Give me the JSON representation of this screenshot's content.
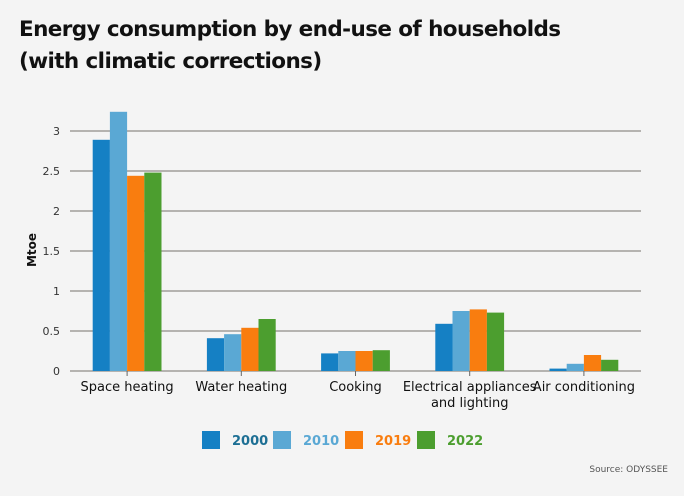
{
  "chart_data": {
    "type": "bar",
    "title": "Energy consumption by end-use of households",
    "subtitle": "(with climatic corrections)",
    "xlabel": "",
    "ylabel": "Mtoe",
    "ylim": [
      0,
      3.25
    ],
    "yticks": [
      0,
      0.5,
      1,
      1.5,
      2,
      2.5,
      3
    ],
    "ytick_labels": [
      "0",
      "0.5",
      "1",
      "1.5",
      "2",
      "2.5",
      "3"
    ],
    "grid": true,
    "legend_position": "bottom",
    "categories": [
      "Space heating",
      "Water heating",
      "Cooking",
      "Electrical appliances and lighting",
      "Air conditioning"
    ],
    "category_label_lines": [
      [
        "Space heating"
      ],
      [
        "Water heating"
      ],
      [
        "Cooking"
      ],
      [
        "Electrical appliances",
        "and lighting"
      ],
      [
        "Air conditioning"
      ]
    ],
    "series": [
      {
        "name": "2000",
        "color": "#1580c4",
        "label_color": "#1d6f94",
        "values": [
          2.89,
          0.41,
          0.22,
          0.59,
          0.03
        ]
      },
      {
        "name": "2010",
        "color": "#5aa8d4",
        "label_color": "#5aa8d4",
        "values": [
          3.24,
          0.46,
          0.25,
          0.75,
          0.09
        ]
      },
      {
        "name": "2019",
        "color": "#f97d0f",
        "label_color": "#f97d0f",
        "values": [
          2.44,
          0.54,
          0.25,
          0.77,
          0.2
        ]
      },
      {
        "name": "2022",
        "color": "#4c9e2f",
        "label_color": "#4c9e2f",
        "values": [
          2.48,
          0.65,
          0.26,
          0.73,
          0.14
        ]
      }
    ],
    "source": "Source: ODYSSEE"
  }
}
